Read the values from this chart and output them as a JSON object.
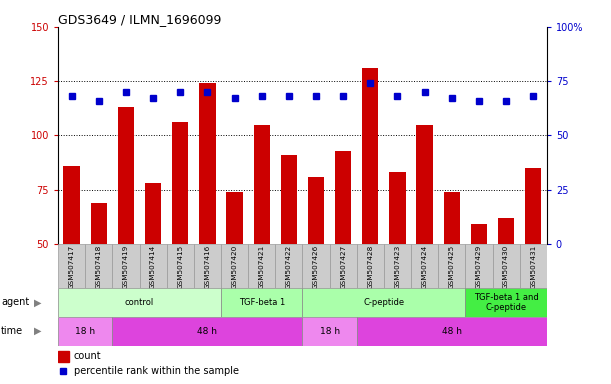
{
  "title": "GDS3649 / ILMN_1696099",
  "samples": [
    "GSM507417",
    "GSM507418",
    "GSM507419",
    "GSM507414",
    "GSM507415",
    "GSM507416",
    "GSM507420",
    "GSM507421",
    "GSM507422",
    "GSM507426",
    "GSM507427",
    "GSM507428",
    "GSM507423",
    "GSM507424",
    "GSM507425",
    "GSM507429",
    "GSM507430",
    "GSM507431"
  ],
  "counts": [
    86,
    69,
    113,
    78,
    106,
    124,
    74,
    105,
    91,
    81,
    93,
    131,
    83,
    105,
    74,
    59,
    62,
    85
  ],
  "percentile_ranks": [
    68,
    66,
    70,
    67,
    70,
    70,
    67,
    68,
    68,
    68,
    68,
    74,
    68,
    70,
    67,
    66,
    66,
    68
  ],
  "count_color": "#cc0000",
  "percentile_color": "#0000cc",
  "ylim_left": [
    50,
    150
  ],
  "ylim_right": [
    0,
    100
  ],
  "yticks_left": [
    50,
    75,
    100,
    125,
    150
  ],
  "yticks_right": [
    0,
    25,
    50,
    75,
    100
  ],
  "ytick_labels_right": [
    "0",
    "25",
    "50",
    "75",
    "100%"
  ],
  "hlines": [
    75,
    100,
    125
  ],
  "agent_groups": [
    {
      "label": "control",
      "start": 0,
      "end": 6,
      "color": "#ccffcc"
    },
    {
      "label": "TGF-beta 1",
      "start": 6,
      "end": 9,
      "color": "#aaffaa"
    },
    {
      "label": "C-peptide",
      "start": 9,
      "end": 15,
      "color": "#aaffaa"
    },
    {
      "label": "TGF-beta 1 and\nC-peptide",
      "start": 15,
      "end": 18,
      "color": "#44ee44"
    }
  ],
  "time_groups": [
    {
      "label": "18 h",
      "start": 0,
      "end": 2,
      "color": "#ee88ee"
    },
    {
      "label": "48 h",
      "start": 2,
      "end": 9,
      "color": "#dd44dd"
    },
    {
      "label": "18 h",
      "start": 9,
      "end": 11,
      "color": "#ee88ee"
    },
    {
      "label": "48 h",
      "start": 11,
      "end": 18,
      "color": "#dd44dd"
    }
  ],
  "bar_width": 0.6,
  "sample_bg": "#cccccc",
  "sample_edge": "#999999"
}
